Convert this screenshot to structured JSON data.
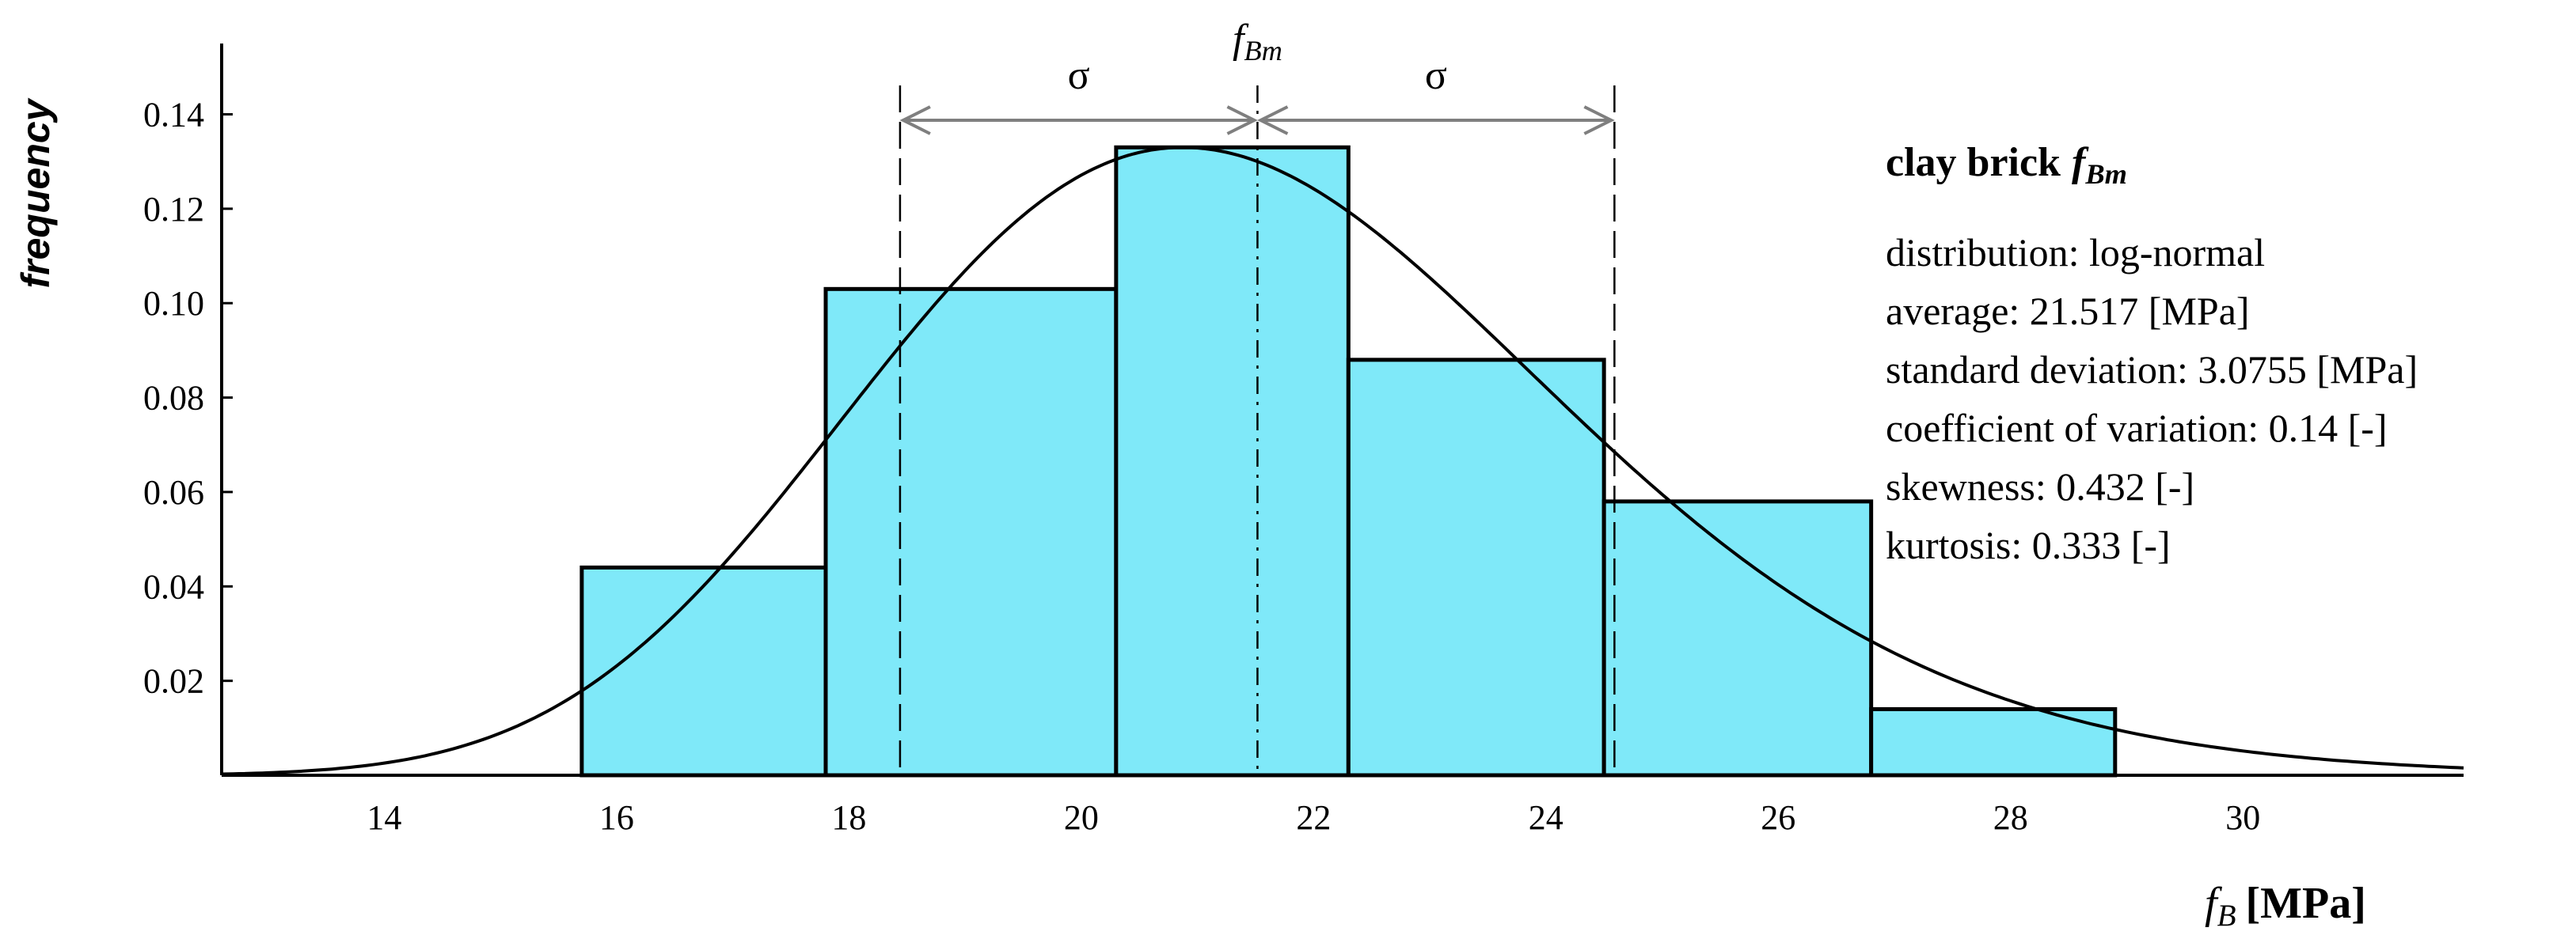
{
  "chart_data": {
    "type": "histogram",
    "xlabel": {
      "symbol": "f",
      "subscript": "B",
      "unit": "[MPa]"
    },
    "ylabel": "frequency",
    "xlim": [
      12.6,
      31.9
    ],
    "ylim": [
      0,
      0.155
    ],
    "x_ticks": [
      14,
      16,
      18,
      20,
      22,
      24,
      26,
      28,
      30
    ],
    "y_ticks": [
      0.02,
      0.04,
      0.06,
      0.08,
      0.1,
      0.12,
      0.14
    ],
    "y_tick_labels": [
      "0.02",
      "0.04",
      "0.06",
      "0.08",
      "0.10",
      "0.12",
      "0.14"
    ],
    "bins": [
      {
        "x0": 15.7,
        "x1": 17.8,
        "value": 0.044
      },
      {
        "x0": 17.8,
        "x1": 20.3,
        "value": 0.103
      },
      {
        "x0": 20.3,
        "x1": 22.3,
        "value": 0.133
      },
      {
        "x0": 22.3,
        "x1": 24.5,
        "value": 0.088
      },
      {
        "x0": 24.5,
        "x1": 26.8,
        "value": 0.058
      },
      {
        "x0": 26.8,
        "x1": 28.9,
        "value": 0.014
      }
    ],
    "bar_color": "#7fe9f9",
    "curve": {
      "distribution": "log-normal",
      "mean": 21.517,
      "std": 3.0755
    },
    "markers": {
      "mean_x": 21.517,
      "minus_sigma_x": 18.44,
      "plus_sigma_x": 24.59,
      "mean_label": {
        "symbol": "f",
        "subscript": "Bm"
      },
      "sigma_label": "σ"
    },
    "info": {
      "title": "clay brick",
      "title_symbol": "f",
      "title_subscript": "Bm",
      "lines": [
        "distribution: log-normal",
        "average: 21.517 [MPa]",
        "standard deviation: 3.0755 [MPa]",
        "coefficient of variation: 0.14 [-]",
        "skewness: 0.432 [-]",
        "kurtosis: 0.333 [-]"
      ]
    }
  }
}
